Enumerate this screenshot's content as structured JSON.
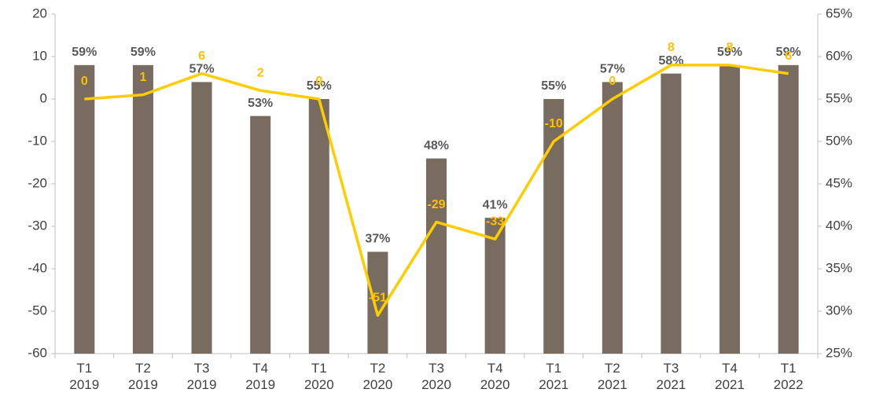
{
  "chart_data": {
    "type": "bar-line",
    "categories": [
      "T1 2019",
      "T2 2019",
      "T3 2019",
      "T4 2019",
      "T1 2020",
      "T2 2020",
      "T3 2020",
      "T4 2020",
      "T1 2021",
      "T2 2021",
      "T3 2021",
      "T4 2021",
      "T1 2022"
    ],
    "series": [
      {
        "type": "bar",
        "axis": "y2",
        "color": "#786b60",
        "values": [
          59,
          59,
          57,
          53,
          55,
          37,
          48,
          41,
          55,
          57,
          58,
          59,
          59
        ],
        "value_labels": [
          "59%",
          "59%",
          "57%",
          "53%",
          "55%",
          "37%",
          "48%",
          "41%",
          "55%",
          "57%",
          "58%",
          "59%",
          "59%"
        ]
      },
      {
        "type": "line",
        "axis": "y",
        "color": "#ffcc00",
        "values": [
          0,
          1,
          6,
          2,
          0,
          -51,
          -29,
          -33,
          -10,
          0,
          8,
          8,
          6
        ]
      }
    ],
    "ylim": [
      -60,
      20
    ],
    "yticks": [
      -60,
      -50,
      -40,
      -30,
      -20,
      -10,
      0,
      10,
      20
    ],
    "y2lim": [
      25,
      65
    ],
    "y2ticks": [
      {
        "value": 25,
        "label": "25%"
      },
      {
        "value": 30,
        "label": "30%"
      },
      {
        "value": 35,
        "label": "35%"
      },
      {
        "value": 40,
        "label": "40%"
      },
      {
        "value": 45,
        "label": "45%"
      },
      {
        "value": 50,
        "label": "50%"
      },
      {
        "value": 55,
        "label": "55%"
      },
      {
        "value": 60,
        "label": "60%"
      },
      {
        "value": 65,
        "label": "65%"
      }
    ]
  }
}
